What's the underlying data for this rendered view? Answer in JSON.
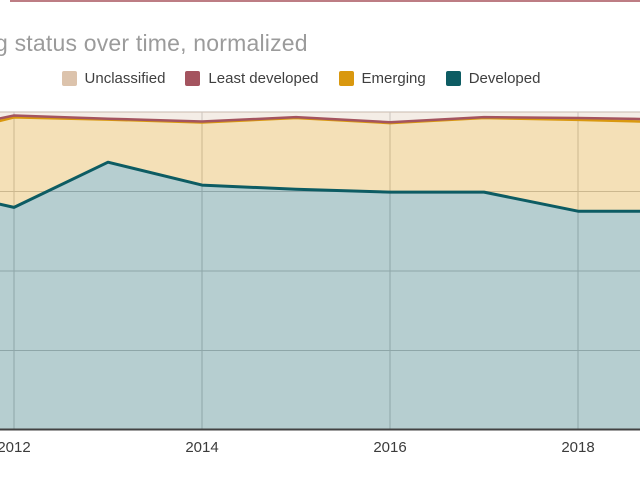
{
  "title": "g status over time, normalized",
  "legend": {
    "items": [
      {
        "label": "Unclassified",
        "color": "#dcc3ac"
      },
      {
        "label": "Least developed",
        "color": "#a4545f"
      },
      {
        "label": "Emerging",
        "color": "#d9980f"
      },
      {
        "label": "Developed",
        "color": "#0d5c63"
      }
    ]
  },
  "x_axis": {
    "tick_labels": [
      "2012",
      "2014",
      "2016",
      "2018"
    ]
  },
  "colors": {
    "grid": "#c6c6c6",
    "plot_top_line": "#d9d0ca",
    "baseline": "#424242",
    "tick_text": "#3b3b3b",
    "title_text": "#9b9b9b",
    "top_edge_artifact": "#b2666f"
  },
  "chart_data": {
    "type": "area",
    "stacked": true,
    "normalized": true,
    "title": "g status over time, normalized",
    "x": [
      2011.85,
      2012,
      2013,
      2014,
      2015,
      2016,
      2017,
      2018,
      2018.66
    ],
    "x_note": "first and last x are points where the series meet the cropped chart edges",
    "x_tick_years": [
      2012,
      2014,
      2016,
      2018
    ],
    "x_tick_labels": [
      "2012",
      "2014",
      "2016",
      "2018"
    ],
    "ylabel": "",
    "xlabel": "",
    "ylim": [
      0,
      100
    ],
    "grid": true,
    "legend_position": "top",
    "series": [
      {
        "name": "Developed",
        "color": "#0d5c63",
        "stroke_width": 3,
        "values": [
          71.0,
          70.0,
          84.2,
          77.0,
          75.7,
          74.8,
          74.8,
          68.8,
          68.8
        ]
      },
      {
        "name": "Emerging",
        "color": "#d9980f",
        "stroke_width": 2.5,
        "values": [
          26.2,
          28.3,
          13.4,
          19.7,
          22.4,
          21.7,
          23.3,
          28.7,
          28.2
        ]
      },
      {
        "name": "Least developed",
        "color": "#a4545f",
        "stroke_width": 2.5,
        "values": [
          0.8,
          0.6,
          0.3,
          0.3,
          0.3,
          0.3,
          0.3,
          0.6,
          0.8
        ]
      },
      {
        "name": "Unclassified",
        "color": "#dcc3ac",
        "stroke_width": 0,
        "values": [
          2.0,
          1.1,
          2.1,
          3.0,
          1.6,
          3.2,
          1.6,
          1.9,
          2.2
        ]
      }
    ]
  }
}
